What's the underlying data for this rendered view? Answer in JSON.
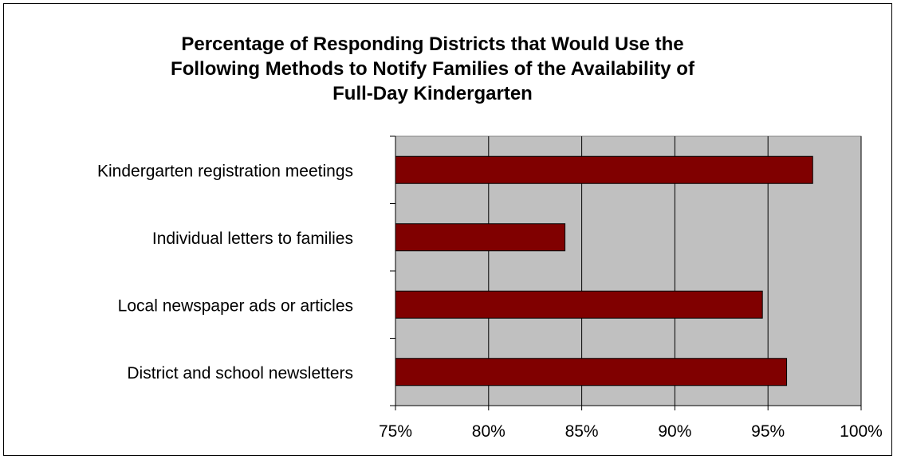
{
  "chart_data": {
    "type": "bar",
    "orientation": "horizontal",
    "title_lines": [
      "Percentage of Responding Districts that Would Use the",
      "Following Methods to Notify Families of the Availability of",
      "Full-Day Kindergarten"
    ],
    "xlabel": "",
    "ylabel": "",
    "categories": [
      "Kindergarten registration meetings",
      "Individual letters to families",
      "Local newspaper ads or articles",
      "District and school newsletters"
    ],
    "values": [
      97.4,
      84.1,
      94.7,
      96.0
    ],
    "xlim": [
      75,
      100
    ],
    "x_ticks": [
      75,
      80,
      85,
      90,
      95,
      100
    ],
    "x_tick_labels": [
      "75%",
      "80%",
      "85%",
      "90%",
      "95%",
      "100%"
    ],
    "grid": true,
    "legend": "none",
    "colors": {
      "bar": "#800000",
      "plot_background": "#c0c0c0",
      "gridline": "#000000"
    }
  }
}
